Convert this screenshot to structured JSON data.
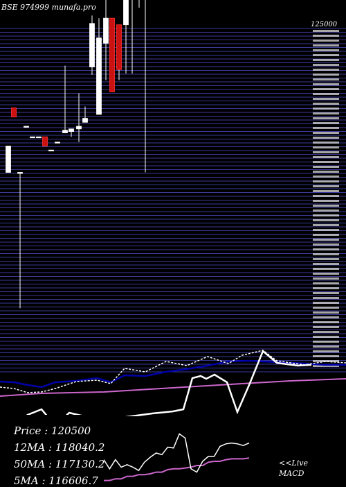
{
  "header": {
    "title": "BSE 974999 munafa.pro"
  },
  "legend": {
    "price_label": "Price",
    "price_value": "120500",
    "ma12_label": "12MA",
    "ma12_value": "118040.2",
    "ma50_label": "50MA",
    "ma50_value": "117130.2",
    "ma5_label": "5MA",
    "ma5_value": "116606.7"
  },
  "footer": {
    "live_label": "<<Live",
    "macd_label": "MACD"
  },
  "colors": {
    "up": "#ffffff",
    "down": "#cc1111",
    "grid": "#3a3a9a",
    "ma_long": "#cc66cc",
    "ma_short": "#0000aa",
    "macd": "#cc66cc"
  },
  "chart_data": [
    {
      "type": "candlestick",
      "title": "BSE 974999 munafa.pro",
      "y_axis_top_label": "125000",
      "ylim": [
        95000,
        125000
      ],
      "candles": [
        {
          "open": 113500,
          "close": 115500,
          "high": 115500,
          "low": 113500
        },
        {
          "open": 113500,
          "close": 113500,
          "high": 113500,
          "low": 103200
        },
        {
          "open": 118400,
          "close": 117700,
          "high": 118400,
          "low": 117700
        },
        {
          "open": 117000,
          "close": 117000,
          "high": 117000,
          "low": 117000
        },
        {
          "open": 116200,
          "close": 116200,
          "high": 116200,
          "low": 116200
        },
        {
          "open": 116200,
          "close": 116200,
          "high": 116200,
          "low": 116200
        },
        {
          "open": 116200,
          "close": 115500,
          "high": 116200,
          "low": 115500
        },
        {
          "open": 115200,
          "close": 115200,
          "high": 115200,
          "low": 115200
        },
        {
          "open": 115800,
          "close": 115800,
          "high": 115800,
          "low": 115800
        },
        {
          "open": 116500,
          "close": 116700,
          "high": 121600,
          "low": 116500
        },
        {
          "open": 116600,
          "close": 116800,
          "high": 116800,
          "low": 116200
        },
        {
          "open": 116800,
          "close": 117000,
          "high": 119500,
          "low": 115800
        },
        {
          "open": 117300,
          "close": 117600,
          "high": 118500,
          "low": 117300
        },
        {
          "open": 121500,
          "close": 124800,
          "high": 125400,
          "low": 120900
        },
        {
          "open": 117900,
          "close": 123700,
          "high": 125200,
          "low": 117900
        },
        {
          "open": 123300,
          "close": 125200,
          "high": 127300,
          "low": 120500
        },
        {
          "open": 125200,
          "close": 119600,
          "high": 125200,
          "low": 119600
        },
        {
          "open": 124700,
          "close": 121300,
          "high": 124700,
          "low": 120500
        },
        {
          "open": 124700,
          "close": 132500,
          "high": 135100,
          "low": 121000
        },
        {
          "open": 130300,
          "close": 129700,
          "high": 132800,
          "low": 121000
        },
        {
          "open": 127800,
          "close": 128800,
          "high": 131300,
          "low": 126000
        },
        {
          "open": 129800,
          "close": 131200,
          "high": 131600,
          "low": 113500
        }
      ]
    },
    {
      "type": "line",
      "title": "MACD",
      "series": [
        {
          "values": [
            0.2,
            0.2,
            0.4,
            0.4,
            0.7,
            0.7,
            0.9,
            0.9,
            1,
            1.2,
            1.2,
            1.5,
            1.6,
            1.6,
            1.7,
            1.8,
            2,
            2,
            2.4,
            2.5,
            2.5,
            2.7,
            2.8,
            2.8,
            2.8,
            2.9
          ]
        },
        {
          "values": [
            2.7,
            1.6,
            2.7,
            1.8,
            2.1,
            1.8,
            1.4,
            2.4,
            3,
            3.5,
            3.3,
            4.2,
            4.1,
            5.8,
            5.3,
            1.6,
            1.2,
            2.5,
            3.1,
            3.1,
            4.3,
            4.6,
            4.7,
            4.6,
            4.4,
            4.7
          ]
        }
      ]
    }
  ]
}
